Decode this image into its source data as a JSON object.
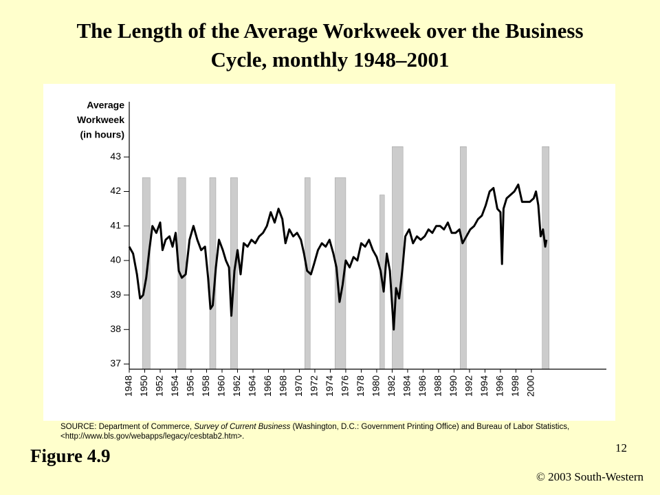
{
  "chart_data": {
    "type": "line",
    "title": "The Length of the Average Workweek over the Business Cycle, monthly 1948–2001",
    "ylabel": [
      "Average",
      "Workweek",
      "(in hours)"
    ],
    "x": [
      1948.0,
      1948.5,
      1949.0,
      1949.4,
      1949.8,
      1950.2,
      1950.6,
      1951.0,
      1951.5,
      1952.0,
      1952.3,
      1952.7,
      1953.2,
      1953.6,
      1954.0,
      1954.4,
      1954.8,
      1955.3,
      1955.8,
      1956.3,
      1956.8,
      1957.3,
      1957.8,
      1958.2,
      1958.5,
      1958.8,
      1959.2,
      1959.6,
      1960.1,
      1960.5,
      1960.9,
      1961.2,
      1961.6,
      1962.0,
      1962.4,
      1962.8,
      1963.3,
      1963.8,
      1964.3,
      1964.8,
      1965.3,
      1965.8,
      1966.3,
      1966.8,
      1967.3,
      1967.8,
      1968.2,
      1968.7,
      1969.2,
      1969.7,
      1970.2,
      1970.6,
      1971.0,
      1971.5,
      1971.9,
      1972.4,
      1972.9,
      1973.4,
      1973.9,
      1974.4,
      1974.8,
      1975.2,
      1975.6,
      1976.0,
      1976.5,
      1977.0,
      1977.5,
      1978.0,
      1978.5,
      1979.0,
      1979.5,
      1980.0,
      1980.5,
      1980.9,
      1981.3,
      1981.7,
      1982.2,
      1982.5,
      1982.9,
      1983.3,
      1983.7,
      1984.2,
      1984.7,
      1985.2,
      1985.7,
      1986.2,
      1986.7,
      1987.2,
      1987.7,
      1988.2,
      1988.7,
      1989.2,
      1989.7,
      1990.2,
      1990.7,
      1991.1,
      1991.6,
      1992.1,
      1992.6,
      1993.1,
      1993.6,
      1994.1,
      1994.6,
      1995.1,
      1995.6,
      1996.0,
      1996.2,
      1996.4,
      1996.8,
      1997.3,
      1997.8,
      1998.3,
      1998.8,
      1999.3,
      1999.8,
      2000.3,
      2000.6,
      2000.9,
      2001.2,
      2001.5,
      2001.8,
      2001.95
    ],
    "series": [
      {
        "color": "#000000",
        "values": [
          40.4,
          40.2,
          39.6,
          38.9,
          39.0,
          39.5,
          40.3,
          41.0,
          40.8,
          41.1,
          40.3,
          40.6,
          40.7,
          40.4,
          40.8,
          39.7,
          39.5,
          39.6,
          40.6,
          41.0,
          40.6,
          40.3,
          40.4,
          39.5,
          38.6,
          38.7,
          39.8,
          40.6,
          40.3,
          40.0,
          39.8,
          38.4,
          39.7,
          40.3,
          39.6,
          40.5,
          40.4,
          40.6,
          40.5,
          40.7,
          40.8,
          41.0,
          41.4,
          41.1,
          41.5,
          41.2,
          40.5,
          40.9,
          40.7,
          40.8,
          40.6,
          40.2,
          39.7,
          39.6,
          39.9,
          40.3,
          40.5,
          40.4,
          40.6,
          40.2,
          39.8,
          38.8,
          39.3,
          40.0,
          39.8,
          40.1,
          40.0,
          40.5,
          40.4,
          40.6,
          40.3,
          40.1,
          39.7,
          39.1,
          40.2,
          39.7,
          38.0,
          39.2,
          38.9,
          39.7,
          40.7,
          40.9,
          40.5,
          40.7,
          40.6,
          40.7,
          40.9,
          40.8,
          41.0,
          41.0,
          40.9,
          41.1,
          40.8,
          40.8,
          40.9,
          40.5,
          40.7,
          40.9,
          41.0,
          41.2,
          41.3,
          41.6,
          42.0,
          42.1,
          41.5,
          41.4,
          39.9,
          41.5,
          41.8,
          41.9,
          42.0,
          42.2,
          41.7,
          41.7,
          41.7,
          41.8,
          42.0,
          41.6,
          40.7,
          40.9,
          40.4,
          40.6
        ]
      }
    ],
    "recessions": [
      {
        "start": 1949.7,
        "end": 1950.7,
        "top": 42.4
      },
      {
        "start": 1954.3,
        "end": 1955.3,
        "top": 42.4
      },
      {
        "start": 1958.4,
        "end": 1959.2,
        "top": 42.4
      },
      {
        "start": 1961.1,
        "end": 1962.0,
        "top": 42.4
      },
      {
        "start": 1970.7,
        "end": 1971.4,
        "top": 42.4
      },
      {
        "start": 1974.6,
        "end": 1976.0,
        "top": 42.4
      },
      {
        "start": 1980.4,
        "end": 1981.0,
        "top": 41.9
      },
      {
        "start": 1982.0,
        "end": 1983.4,
        "top": 43.3
      },
      {
        "start": 1990.8,
        "end": 1991.6,
        "top": 43.3
      },
      {
        "start": 2001.4,
        "end": 2002.3,
        "top": 43.3
      }
    ],
    "recession_color": "#cccccc",
    "xlim": [
      1948,
      2009.7
    ],
    "xticks": [
      1948,
      1950,
      1952,
      1954,
      1956,
      1958,
      1960,
      1962,
      1964,
      1966,
      1968,
      1970,
      1972,
      1974,
      1976,
      1978,
      1980,
      1982,
      1984,
      1986,
      1988,
      1990,
      1992,
      1994,
      1996,
      1998,
      2000
    ],
    "ylim": [
      36.85,
      44.6
    ],
    "yticks": [
      37,
      38,
      39,
      40,
      41,
      42,
      43
    ],
    "source": [
      "SOURCE: Department of Commerce, ",
      "Survey of Current Business",
      " (Washington, D.C.: Government Printing Office) and Bureau of Labor Statistics, <http://www.bls.gov/webapps/legacy/cesbtab2.htm>."
    ]
  },
  "figure_label": "Figure 4.9",
  "page_number": "12",
  "copyright": "© 2003 South-Western"
}
